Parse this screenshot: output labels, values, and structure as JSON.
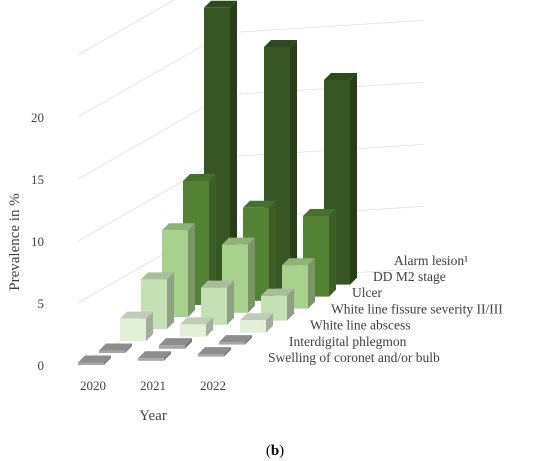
{
  "chart_data": {
    "type": "bar",
    "subtype": "3d-column",
    "title": "",
    "xlabel": "Year",
    "ylabel": "Prevalence in %",
    "categories": [
      "2020",
      "2021",
      "2022"
    ],
    "ylim": [
      0,
      25
    ],
    "yticks": [
      "0",
      "5",
      "10",
      "15",
      "20"
    ],
    "grid": true,
    "series": [
      {
        "name": "Swelling of coronet and/or bulb",
        "values": [
          0.1,
          0.1,
          0.1
        ],
        "color": "#a6a6a6"
      },
      {
        "name": "Interdigital phlegmon",
        "values": [
          0.1,
          0.3,
          0.2
        ],
        "color": "#a6a6a6"
      },
      {
        "name": "White line abscess",
        "values": [
          1.8,
          1.0,
          1.0
        ],
        "color": "#e2f0d9"
      },
      {
        "name": "White line fissure severity II/III",
        "values": [
          4.0,
          3.0,
          2.0
        ],
        "color": "#c5e0b4"
      },
      {
        "name": "Ulcer",
        "values": [
          7.0,
          5.5,
          3.5
        ],
        "color": "#a9d18e"
      },
      {
        "name": "DD M2 stage",
        "values": [
          10.0,
          7.5,
          6.5
        ],
        "color": "#548235"
      },
      {
        "name": "Alarm lesion¹",
        "values": [
          23.0,
          19.5,
          16.5
        ],
        "color": "#375623"
      }
    ]
  },
  "caption": {
    "open": "(",
    "letter": "b",
    "close": ")"
  }
}
